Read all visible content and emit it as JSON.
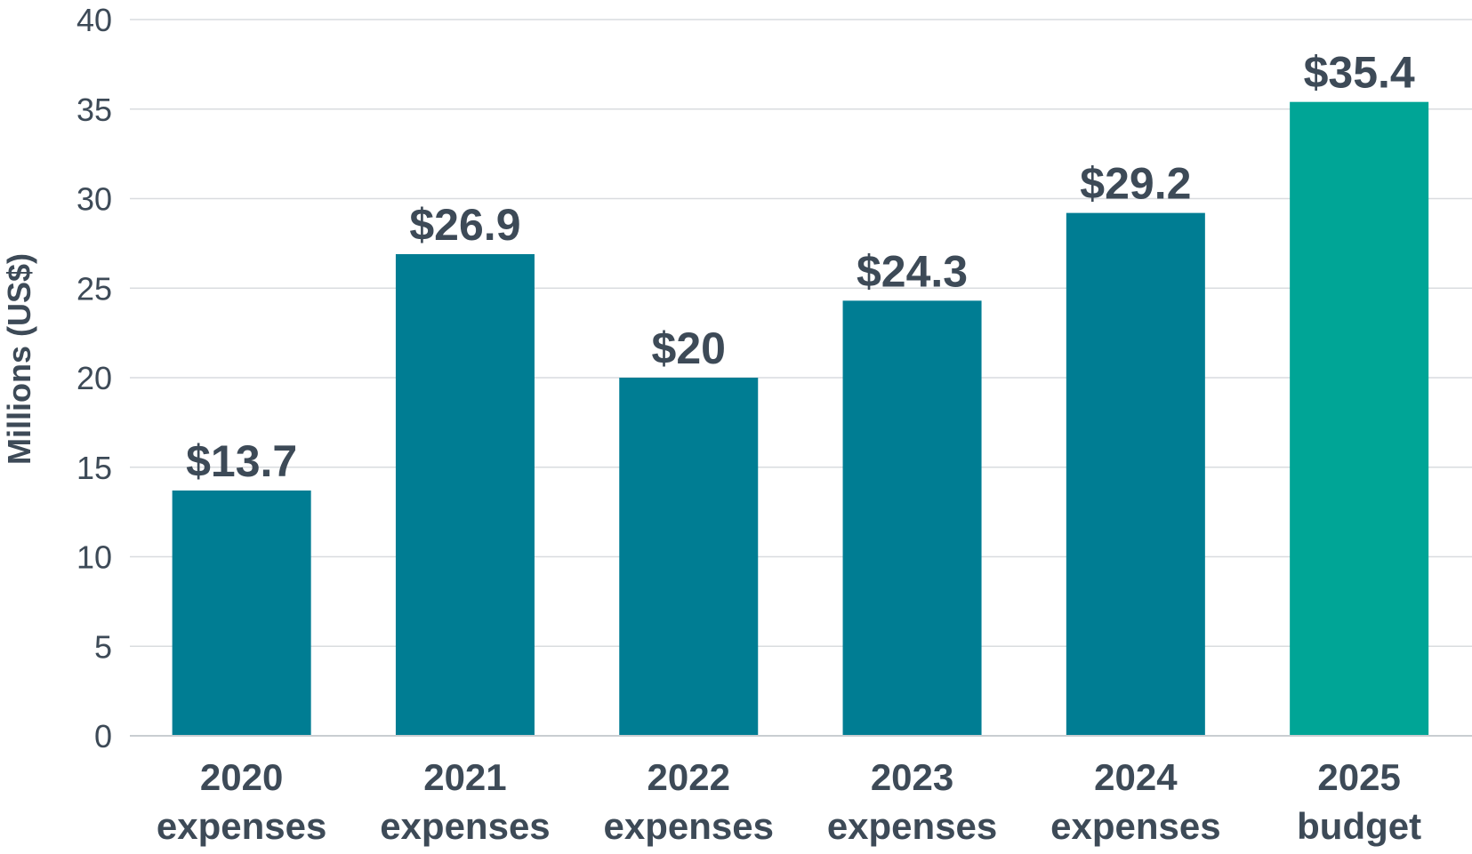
{
  "chart_data": {
    "type": "bar",
    "categories": [
      [
        "2020",
        "expenses"
      ],
      [
        "2021",
        "expenses"
      ],
      [
        "2022",
        "expenses"
      ],
      [
        "2023",
        "expenses"
      ],
      [
        "2024",
        "expenses"
      ],
      [
        "2025",
        "budget"
      ]
    ],
    "values": [
      13.7,
      26.9,
      20,
      24.3,
      29.2,
      35.4
    ],
    "data_labels": [
      "$13.7",
      "$26.9",
      "$20",
      "$24.3",
      "$29.2",
      "$35.4"
    ],
    "bar_colors": [
      "#007d93",
      "#007d93",
      "#007d93",
      "#007d93",
      "#007d93",
      "#00a596"
    ],
    "ylabel": "Millions (US$)",
    "ylim": [
      0,
      40
    ],
    "yticks": [
      0,
      5,
      10,
      15,
      20,
      25,
      30,
      35,
      40
    ],
    "grid": true,
    "legend": "none"
  }
}
